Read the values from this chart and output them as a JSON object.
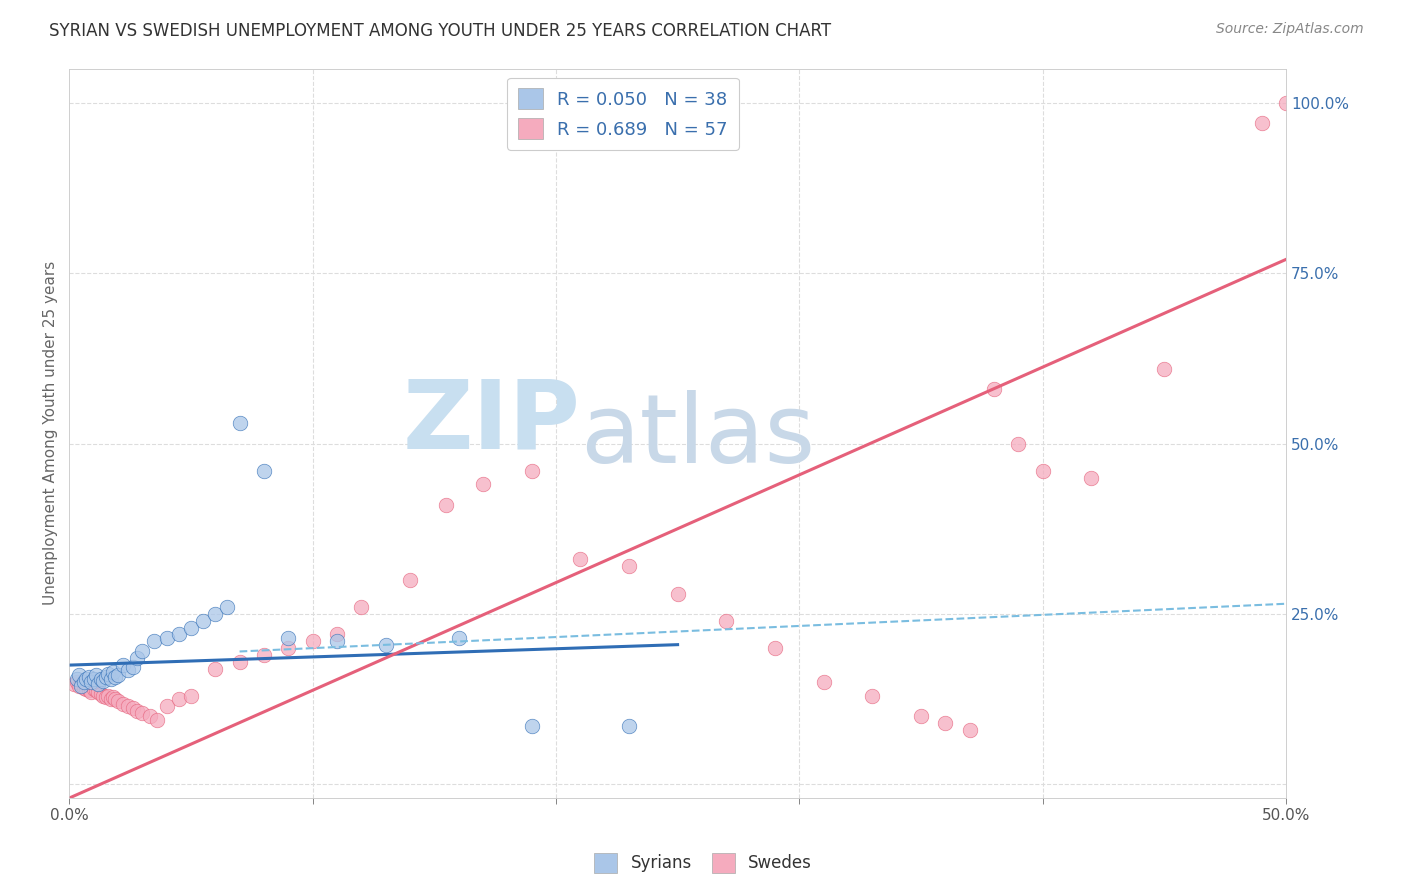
{
  "title": "SYRIAN VS SWEDISH UNEMPLOYMENT AMONG YOUTH UNDER 25 YEARS CORRELATION CHART",
  "source": "Source: ZipAtlas.com",
  "ylabel": "Unemployment Among Youth under 25 years",
  "xlim": [
    0.0,
    0.5
  ],
  "ylim": [
    -0.02,
    1.05
  ],
  "yticks_right": [
    0.0,
    0.25,
    0.5,
    0.75,
    1.0
  ],
  "yticklabels_right": [
    "",
    "25.0%",
    "50.0%",
    "75.0%",
    "100.0%"
  ],
  "legend_r1": "R = 0.050",
  "legend_n1": "N = 38",
  "legend_r2": "R = 0.689",
  "legend_n2": "N = 57",
  "color_syrian": "#aac6e8",
  "color_swede": "#f5abbe",
  "color_syrian_line": "#2f6db5",
  "color_swede_line": "#e5607a",
  "color_dashed": "#7abde0",
  "watermark_zip": "ZIP",
  "watermark_atlas": "atlas",
  "watermark_color_zip": "#c8dff0",
  "watermark_color_atlas": "#c8d8e8",
  "background_color": "#ffffff",
  "grid_color": "#dddddd",
  "syrians_x": [
    0.003,
    0.004,
    0.005,
    0.006,
    0.007,
    0.008,
    0.009,
    0.01,
    0.011,
    0.012,
    0.013,
    0.014,
    0.015,
    0.016,
    0.017,
    0.018,
    0.019,
    0.02,
    0.022,
    0.024,
    0.026,
    0.028,
    0.03,
    0.035,
    0.04,
    0.045,
    0.05,
    0.055,
    0.06,
    0.065,
    0.07,
    0.08,
    0.09,
    0.11,
    0.13,
    0.16,
    0.19,
    0.23
  ],
  "syrians_y": [
    0.155,
    0.16,
    0.145,
    0.15,
    0.155,
    0.158,
    0.15,
    0.155,
    0.16,
    0.148,
    0.155,
    0.152,
    0.158,
    0.162,
    0.155,
    0.165,
    0.158,
    0.16,
    0.175,
    0.168,
    0.172,
    0.185,
    0.195,
    0.21,
    0.215,
    0.22,
    0.23,
    0.24,
    0.25,
    0.26,
    0.53,
    0.46,
    0.215,
    0.21,
    0.205,
    0.215,
    0.085,
    0.085
  ],
  "swedes_x": [
    0.002,
    0.003,
    0.004,
    0.005,
    0.006,
    0.007,
    0.008,
    0.009,
    0.01,
    0.011,
    0.012,
    0.013,
    0.014,
    0.015,
    0.016,
    0.017,
    0.018,
    0.019,
    0.02,
    0.022,
    0.024,
    0.026,
    0.028,
    0.03,
    0.033,
    0.036,
    0.04,
    0.045,
    0.05,
    0.06,
    0.07,
    0.08,
    0.09,
    0.1,
    0.11,
    0.12,
    0.14,
    0.155,
    0.17,
    0.19,
    0.21,
    0.23,
    0.25,
    0.27,
    0.29,
    0.31,
    0.33,
    0.35,
    0.36,
    0.37,
    0.38,
    0.39,
    0.4,
    0.42,
    0.45,
    0.49,
    0.5
  ],
  "swedes_y": [
    0.148,
    0.15,
    0.145,
    0.148,
    0.142,
    0.14,
    0.138,
    0.135,
    0.14,
    0.138,
    0.135,
    0.132,
    0.13,
    0.128,
    0.13,
    0.125,
    0.128,
    0.125,
    0.122,
    0.118,
    0.115,
    0.112,
    0.108,
    0.105,
    0.1,
    0.095,
    0.115,
    0.125,
    0.13,
    0.17,
    0.18,
    0.19,
    0.2,
    0.21,
    0.22,
    0.26,
    0.3,
    0.41,
    0.44,
    0.46,
    0.33,
    0.32,
    0.28,
    0.24,
    0.2,
    0.15,
    0.13,
    0.1,
    0.09,
    0.08,
    0.58,
    0.5,
    0.46,
    0.45,
    0.61,
    0.97,
    1.0
  ],
  "syrian_line_x0": 0.0,
  "syrian_line_y0": 0.175,
  "syrian_line_x1": 0.25,
  "syrian_line_y1": 0.205,
  "swede_line_x0": 0.0,
  "swede_line_y0": -0.02,
  "swede_line_x1": 0.5,
  "swede_line_y1": 0.77,
  "dashed_line_x0": 0.07,
  "dashed_line_y0": 0.195,
  "dashed_line_x1": 0.5,
  "dashed_line_y1": 0.265
}
